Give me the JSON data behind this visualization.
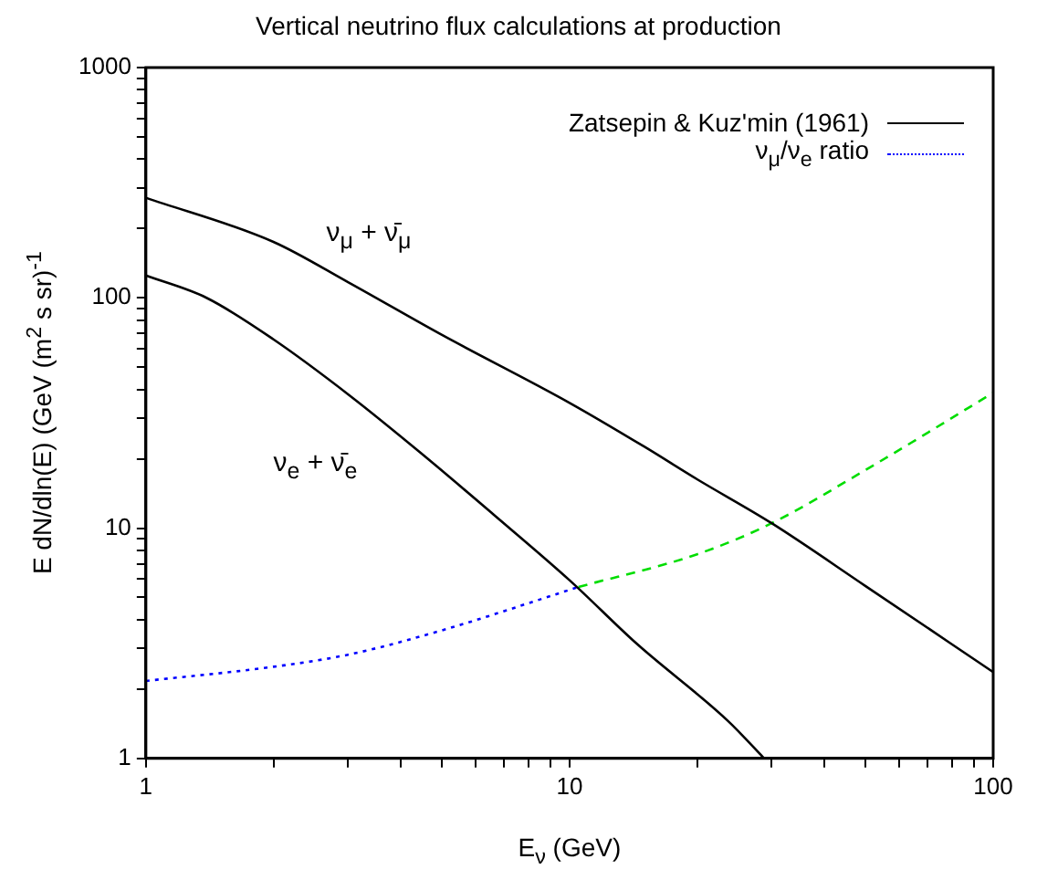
{
  "chart_data": {
    "type": "line",
    "title": "Vertical neutrino flux calculations at production",
    "xlabel": "E$_{ν}$ (GeV)",
    "ylabel": "E dN/dln(E) (GeV (m$^{2}$ s sr)$^{-1}$",
    "log": "xy",
    "grid": false,
    "legend": "top right",
    "marker": "none",
    "xlim": [
      1,
      100
    ],
    "ylim": [
      1,
      1000
    ],
    "xticks": [
      1,
      {
        "value": 2,
        "label": null
      },
      {
        "value": 3,
        "label": null
      },
      {
        "value": 4,
        "label": null
      },
      {
        "value": 5,
        "label": null
      },
      {
        "value": 6,
        "label": null
      },
      {
        "value": 7,
        "label": null
      },
      {
        "value": 8,
        "label": null
      },
      {
        "value": 9,
        "label": null
      },
      10,
      {
        "value": 20,
        "label": null
      },
      {
        "value": 30,
        "label": null
      },
      {
        "value": 40,
        "label": null
      },
      {
        "value": 50,
        "label": null
      },
      {
        "value": 60,
        "label": null
      },
      {
        "value": 70,
        "label": null
      },
      {
        "value": 80,
        "label": null
      },
      {
        "value": 90,
        "label": null
      },
      100
    ],
    "yticks": [
      1,
      {
        "value": 2,
        "label": null
      },
      {
        "value": 3,
        "label": null
      },
      {
        "value": 4,
        "label": null
      },
      {
        "value": 5,
        "label": null
      },
      {
        "value": 6,
        "label": null
      },
      {
        "value": 7,
        "label": null
      },
      {
        "value": 8,
        "label": null
      },
      {
        "value": 9,
        "label": null
      },
      10,
      {
        "value": 20,
        "label": null
      },
      {
        "value": 30,
        "label": null
      },
      {
        "value": 40,
        "label": null
      },
      {
        "value": 50,
        "label": null
      },
      {
        "value": 60,
        "label": null
      },
      {
        "value": 70,
        "label": null
      },
      {
        "value": 80,
        "label": null
      },
      {
        "value": 90,
        "label": null
      },
      100,
      {
        "value": 200,
        "label": null
      },
      {
        "value": 300,
        "label": null
      },
      {
        "value": 400,
        "label": null
      },
      {
        "value": 500,
        "label": null
      },
      {
        "value": 600,
        "label": null
      },
      {
        "value": 700,
        "label": null
      },
      {
        "value": 800,
        "label": null
      },
      {
        "value": 900,
        "label": null
      },
      1000
    ],
    "series": [
      {
        "name": "Zatsepin & Kuz'min (1961)",
        "color": "#000000",
        "line_style": "solid",
        "x": [
          1,
          2,
          3,
          5,
          10,
          15,
          20,
          30,
          50,
          100
        ],
        "values": [
          272,
          175,
          117,
          69,
          35,
          22.6,
          16.3,
          10.5,
          5.6,
          2.37
        ]
      },
      {
        "color": "#000000",
        "line_style": "solid",
        "x": [
          1,
          1.39,
          2,
          3.03,
          4.47,
          6.6,
          10,
          14.4,
          23.7,
          28.8
        ],
        "values": [
          125,
          100,
          66,
          37.6,
          21.1,
          11.5,
          5.94,
          3.15,
          1.45,
          1
        ]
      },
      {
        "name": "ν$_{μ}$/ν$_{e}$ ratio",
        "color": "#0000ff",
        "line_style": "dotted",
        "x": [
          1,
          2,
          3,
          5,
          10.5
        ],
        "values": [
          2.17,
          2.5,
          2.82,
          3.6,
          5.55
        ]
      },
      {
        "color": "#00dd00",
        "line_style": "dashed",
        "x": [
          10.5,
          20,
          30,
          50,
          100
        ],
        "values": [
          5.55,
          7.7,
          10.5,
          17.9,
          38.7
        ]
      }
    ],
    "annotations": [
      "ν$_{μ}$ + ν̄$_{μ}$",
      "ν$_{e}$ + ν̄$_{e}$"
    ]
  }
}
